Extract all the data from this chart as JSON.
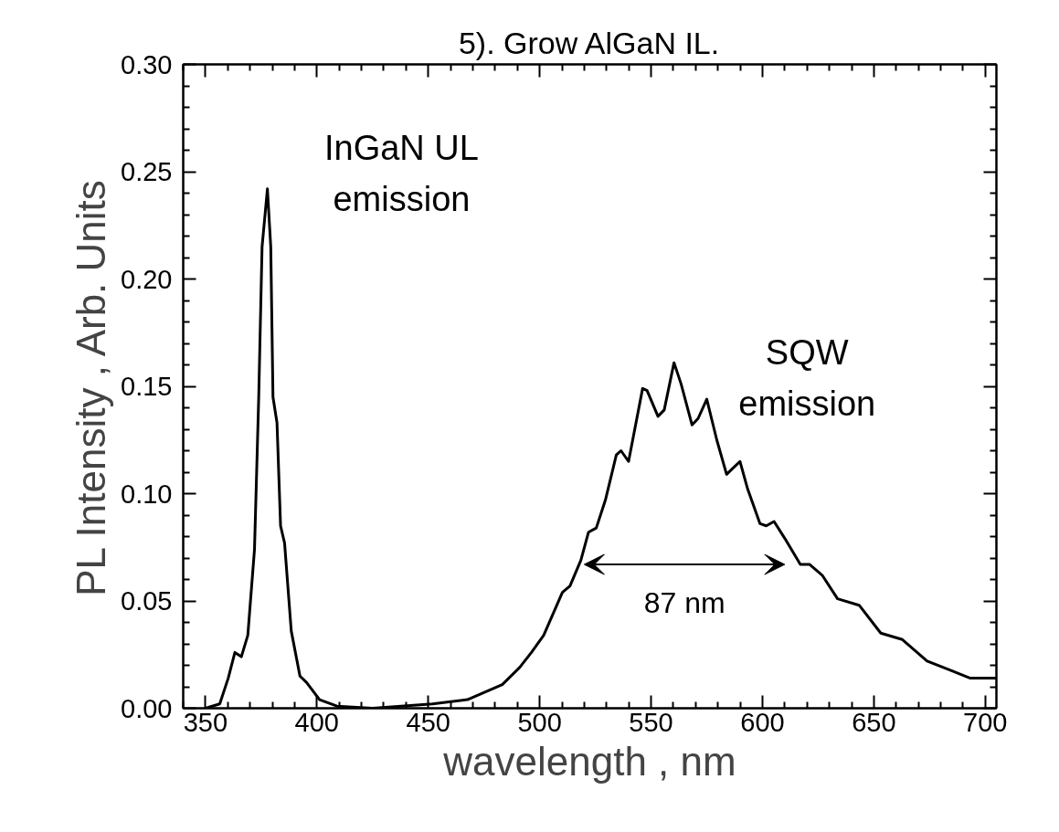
{
  "chart_data": {
    "type": "line",
    "title": "5). Grow AlGaN IL.",
    "xlabel": "wavelength , nm",
    "ylabel": "PL Intensity , Arb. Units",
    "xlim": [
      340,
      705
    ],
    "ylim": [
      0,
      0.3
    ],
    "xticks": [
      {
        "value": 340,
        "label": null
      },
      350,
      {
        "value": 360,
        "label": null
      },
      {
        "value": 370,
        "label": null
      },
      {
        "value": 380,
        "label": null
      },
      {
        "value": 390,
        "label": null
      },
      400,
      {
        "value": 410,
        "label": null
      },
      {
        "value": 420,
        "label": null
      },
      {
        "value": 430,
        "label": null
      },
      {
        "value": 440,
        "label": null
      },
      450,
      {
        "value": 460,
        "label": null
      },
      {
        "value": 470,
        "label": null
      },
      {
        "value": 480,
        "label": null
      },
      {
        "value": 490,
        "label": null
      },
      500,
      {
        "value": 510,
        "label": null
      },
      {
        "value": 520,
        "label": null
      },
      {
        "value": 530,
        "label": null
      },
      {
        "value": 540,
        "label": null
      },
      550,
      {
        "value": 560,
        "label": null
      },
      {
        "value": 570,
        "label": null
      },
      {
        "value": 580,
        "label": null
      },
      {
        "value": 590,
        "label": null
      },
      600,
      {
        "value": 610,
        "label": null
      },
      {
        "value": 620,
        "label": null
      },
      {
        "value": 630,
        "label": null
      },
      {
        "value": 640,
        "label": null
      },
      650,
      {
        "value": 660,
        "label": null
      },
      {
        "value": 670,
        "label": null
      },
      {
        "value": 680,
        "label": null
      },
      {
        "value": 690,
        "label": null
      },
      700
    ],
    "yticks": [
      {
        "value": 0,
        "label": "0.00"
      },
      {
        "value": 0.01,
        "label": null
      },
      {
        "value": 0.02,
        "label": null
      },
      {
        "value": 0.03,
        "label": null
      },
      {
        "value": 0.04,
        "label": null
      },
      0.05,
      {
        "value": 0.06,
        "label": null
      },
      {
        "value": 0.07,
        "label": null
      },
      {
        "value": 0.08,
        "label": null
      },
      {
        "value": 0.09,
        "label": null
      },
      {
        "value": 0.1,
        "label": "0.10"
      },
      {
        "value": 0.11,
        "label": null
      },
      {
        "value": 0.12,
        "label": null
      },
      {
        "value": 0.13,
        "label": null
      },
      {
        "value": 0.14,
        "label": null
      },
      0.15,
      {
        "value": 0.16,
        "label": null
      },
      {
        "value": 0.17,
        "label": null
      },
      {
        "value": 0.18,
        "label": null
      },
      {
        "value": 0.19,
        "label": null
      },
      {
        "value": 0.2,
        "label": "0.20"
      },
      {
        "value": 0.21,
        "label": null
      },
      {
        "value": 0.22,
        "label": null
      },
      {
        "value": 0.23,
        "label": null
      },
      {
        "value": 0.24,
        "label": null
      },
      0.25,
      {
        "value": 0.26,
        "label": null
      },
      {
        "value": 0.27,
        "label": null
      },
      {
        "value": 0.28,
        "label": null
      },
      {
        "value": 0.29,
        "label": null
      },
      {
        "value": 0.3,
        "label": "0.30"
      }
    ],
    "grid": false,
    "marker": "none",
    "line_style": "solid",
    "annotations": [
      "InGaN UL\nemission",
      "SQW\nemission",
      "87 nm"
    ],
    "series": [
      {
        "color": "#000000",
        "x": [
          350,
          356.4,
          360.2,
          363.2,
          366.1,
          369,
          372,
          373.9,
          375.4,
          377.8,
          379.3,
          380.3,
          382.1,
          383.7,
          385.5,
          388.5,
          392.4,
          395.4,
          401.2,
          409,
          425,
          451.9,
          467.6,
          483.2,
          491,
          496.3,
          501.8,
          510.2,
          513.6,
          518.5,
          521.9,
          525.4,
          529.5,
          534.4,
          536.5,
          539.9,
          546.2,
          548.2,
          553.1,
          555.9,
          560.3,
          563.5,
          568.4,
          571.1,
          575,
          579.5,
          583.9,
          589.9,
          593.4,
          598.9,
          601.7,
          605.2,
          610.1,
          617,
          621.2,
          626.8,
          633.7,
          643.4,
          653.1,
          662.8,
          673.9,
          683.6,
          693.3,
          705
        ],
        "values": [
          0.0,
          0.002,
          0.014,
          0.026,
          0.024,
          0.034,
          0.074,
          0.145,
          0.215,
          0.242,
          0.215,
          0.145,
          0.133,
          0.085,
          0.077,
          0.036,
          0.015,
          0.012,
          0.004,
          0.001,
          0.0,
          0.002,
          0.004,
          0.011,
          0.019,
          0.026,
          0.034,
          0.054,
          0.057,
          0.069,
          0.082,
          0.084,
          0.097,
          0.118,
          0.12,
          0.115,
          0.149,
          0.148,
          0.136,
          0.139,
          0.161,
          0.151,
          0.132,
          0.135,
          0.144,
          0.125,
          0.109,
          0.115,
          0.102,
          0.086,
          0.085,
          0.087,
          0.079,
          0.067,
          0.067,
          0.062,
          0.051,
          0.048,
          0.035,
          0.032,
          0.022,
          0.018,
          0.014,
          0.014
        ]
      }
    ]
  }
}
